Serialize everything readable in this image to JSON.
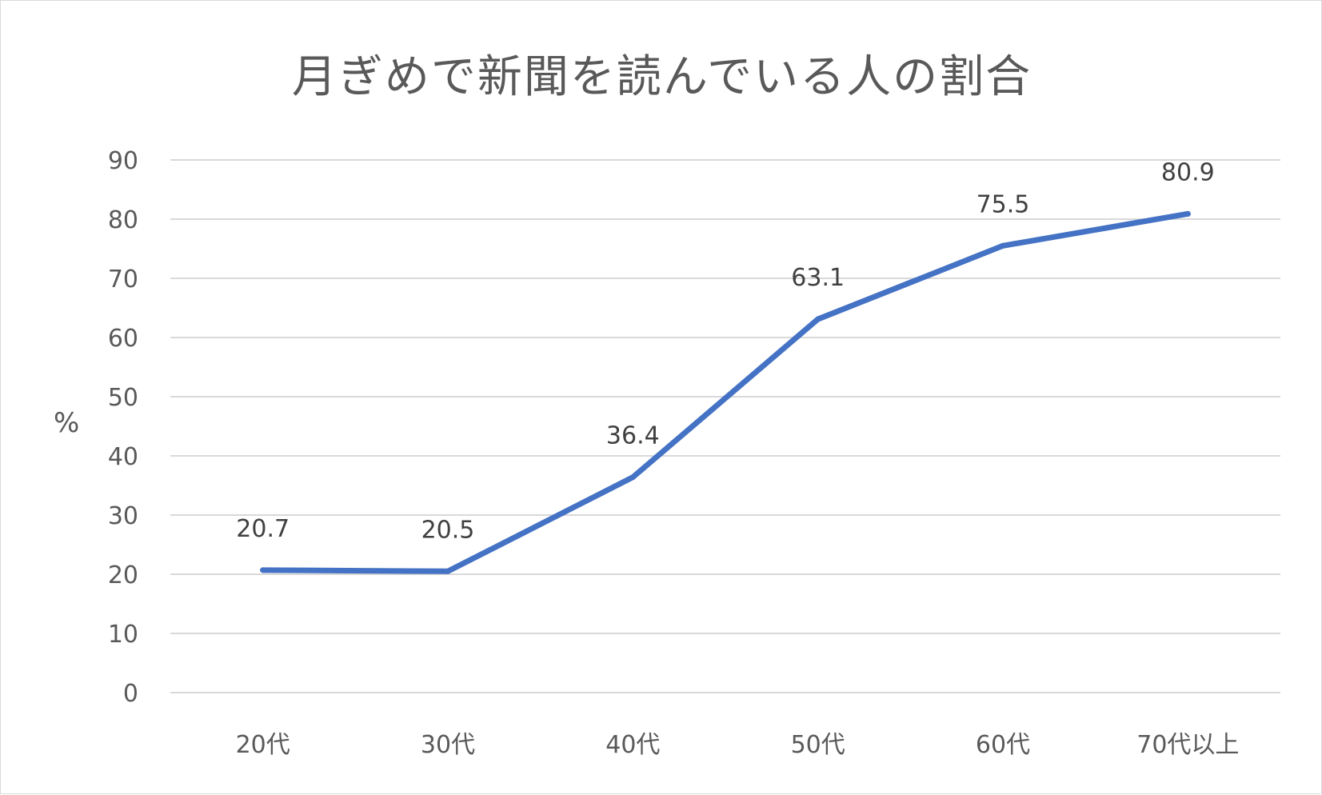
{
  "chart_data": {
    "type": "line",
    "title": "月ぎめで新聞を読んでいる人の割合",
    "xlabel": "",
    "ylabel": "%",
    "categories": [
      "20代",
      "30代",
      "40代",
      "50代",
      "60代",
      "70代以上"
    ],
    "series": [
      {
        "values": [
          20.7,
          20.5,
          36.4,
          63.1,
          75.5,
          80.9
        ],
        "color": "#4472C4",
        "data_labels": [
          "20.7",
          "20.5",
          "36.4",
          "63.1",
          "75.5",
          "80.9"
        ]
      }
    ],
    "ylim": [
      0,
      90
    ],
    "yticks": [
      "0",
      "10",
      "20",
      "30",
      "40",
      "50",
      "60",
      "70",
      "80",
      "90"
    ],
    "grid": "horizontal",
    "legend": "none",
    "colors": {
      "line": "#4472C4",
      "gridline": "#d9d9d9",
      "text": "#595959",
      "data_label": "#404040"
    }
  }
}
